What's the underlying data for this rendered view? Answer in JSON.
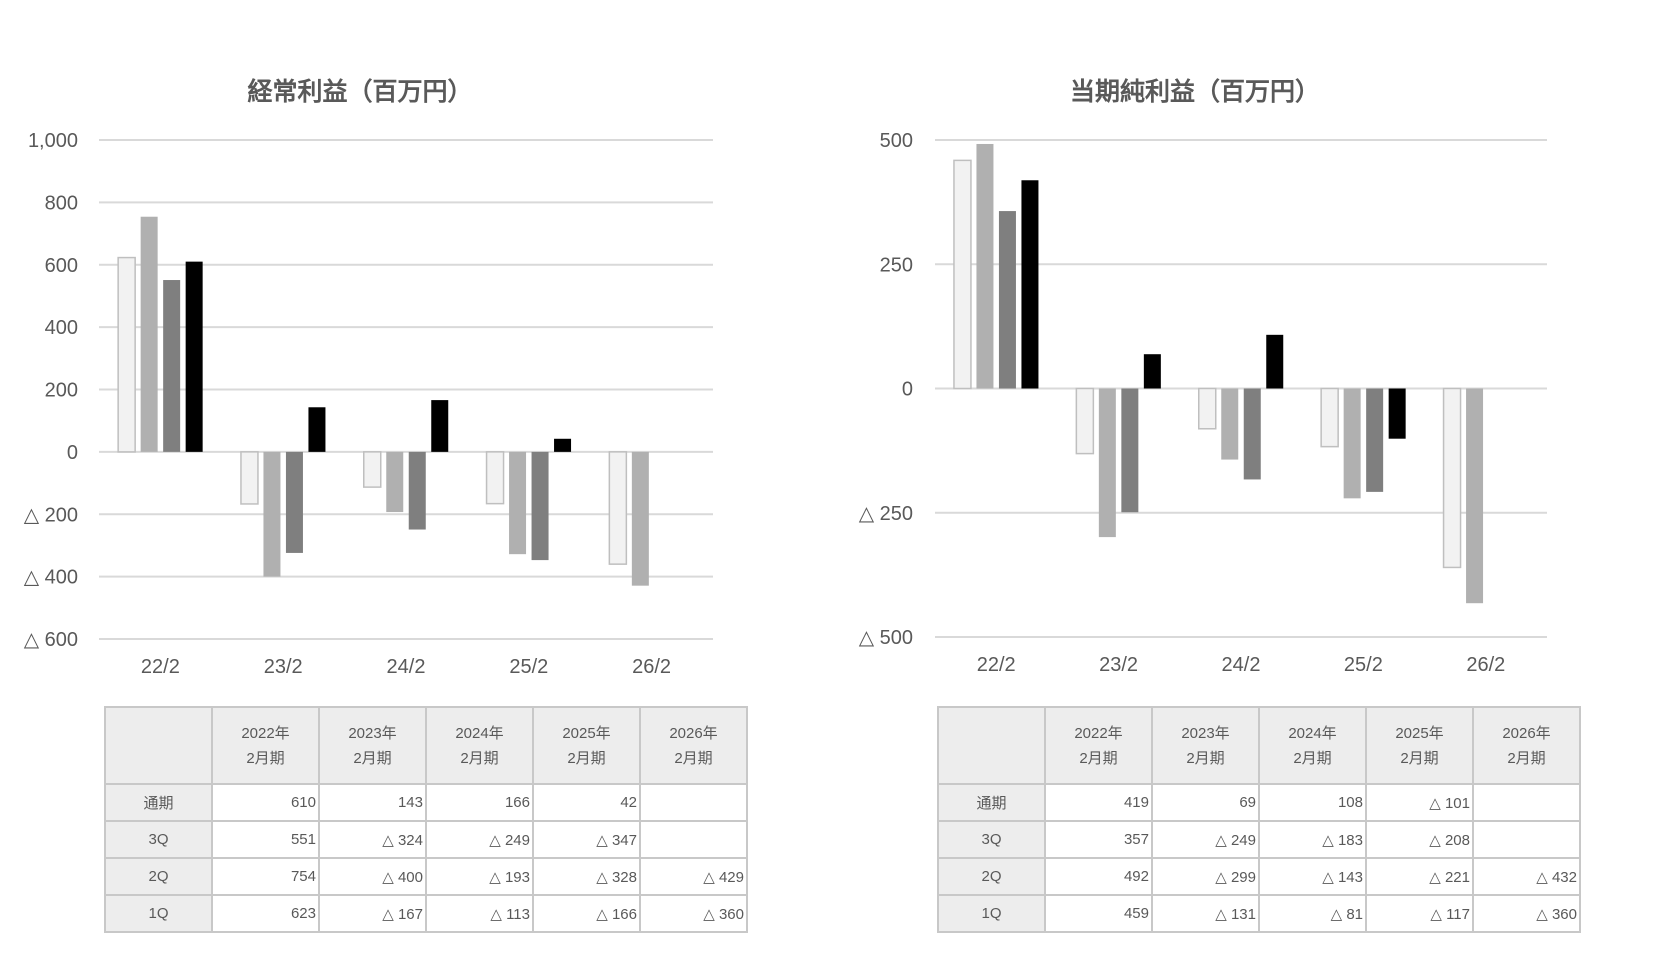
{
  "chart_data": [
    {
      "type": "bar",
      "title": "経常利益（百万円）",
      "categories": [
        "22/2",
        "23/2",
        "24/2",
        "25/2",
        "26/2"
      ],
      "ylim": [
        -600,
        1000
      ],
      "yticks": [
        1000,
        800,
        600,
        400,
        200,
        0,
        -200,
        -400,
        -600
      ],
      "ytick_labels": [
        "1,000",
        "800",
        "600",
        "400",
        "200",
        "0",
        "△ 200",
        "△ 400",
        "△ 600"
      ],
      "series": [
        {
          "name": "1Q",
          "color": "#f2f2f2",
          "values": [
            623,
            -167,
            -113,
            -166,
            -360
          ]
        },
        {
          "name": "2Q",
          "color": "#b0b0b0",
          "values": [
            754,
            -400,
            -193,
            -328,
            -429
          ]
        },
        {
          "name": "3Q",
          "color": "#7f7f7f",
          "values": [
            551,
            -324,
            -249,
            -347,
            null
          ]
        },
        {
          "name": "通期",
          "color": "#000000",
          "values": [
            610,
            143,
            166,
            42,
            null
          ]
        }
      ]
    },
    {
      "type": "bar",
      "title": "当期純利益（百万円）",
      "categories": [
        "22/2",
        "23/2",
        "24/2",
        "25/2",
        "26/2"
      ],
      "ylim": [
        -500,
        500
      ],
      "yticks": [
        500,
        250,
        0,
        -250,
        -500
      ],
      "ytick_labels": [
        "500",
        "250",
        "0",
        "△ 250",
        "△ 500"
      ],
      "series": [
        {
          "name": "1Q",
          "color": "#f2f2f2",
          "values": [
            459,
            -131,
            -81,
            -117,
            -360
          ]
        },
        {
          "name": "2Q",
          "color": "#b0b0b0",
          "values": [
            492,
            -299,
            -143,
            -221,
            -432
          ]
        },
        {
          "name": "3Q",
          "color": "#7f7f7f",
          "values": [
            357,
            -249,
            -183,
            -208,
            null
          ]
        },
        {
          "name": "通期",
          "color": "#000000",
          "values": [
            419,
            69,
            108,
            -101,
            null
          ]
        }
      ]
    }
  ],
  "tables": [
    {
      "headers": [
        [
          "2022年",
          "2月期"
        ],
        [
          "2023年",
          "2月期"
        ],
        [
          "2024年",
          "2月期"
        ],
        [
          "2025年",
          "2月期"
        ],
        [
          "2026年",
          "2月期"
        ]
      ],
      "rows": [
        {
          "label": "通期",
          "cells": [
            "610",
            "143",
            "166",
            "42",
            ""
          ]
        },
        {
          "label": "3Q",
          "cells": [
            "551",
            "△ 324",
            "△ 249",
            "△ 347",
            ""
          ]
        },
        {
          "label": "2Q",
          "cells": [
            "754",
            "△ 400",
            "△ 193",
            "△ 328",
            "△ 429"
          ]
        },
        {
          "label": "1Q",
          "cells": [
            "623",
            "△ 167",
            "△ 113",
            "△ 166",
            "△ 360"
          ]
        }
      ]
    },
    {
      "headers": [
        [
          "2022年",
          "2月期"
        ],
        [
          "2023年",
          "2月期"
        ],
        [
          "2024年",
          "2月期"
        ],
        [
          "2025年",
          "2月期"
        ],
        [
          "2026年",
          "2月期"
        ]
      ],
      "rows": [
        {
          "label": "通期",
          "cells": [
            "419",
            "69",
            "108",
            "△ 101",
            ""
          ]
        },
        {
          "label": "3Q",
          "cells": [
            "357",
            "△ 249",
            "△ 183",
            "△ 208",
            ""
          ]
        },
        {
          "label": "2Q",
          "cells": [
            "492",
            "△ 299",
            "△ 143",
            "△ 221",
            "△ 432"
          ]
        },
        {
          "label": "1Q",
          "cells": [
            "459",
            "△ 131",
            "△ 81",
            "△ 117",
            "△ 360"
          ]
        }
      ]
    }
  ]
}
